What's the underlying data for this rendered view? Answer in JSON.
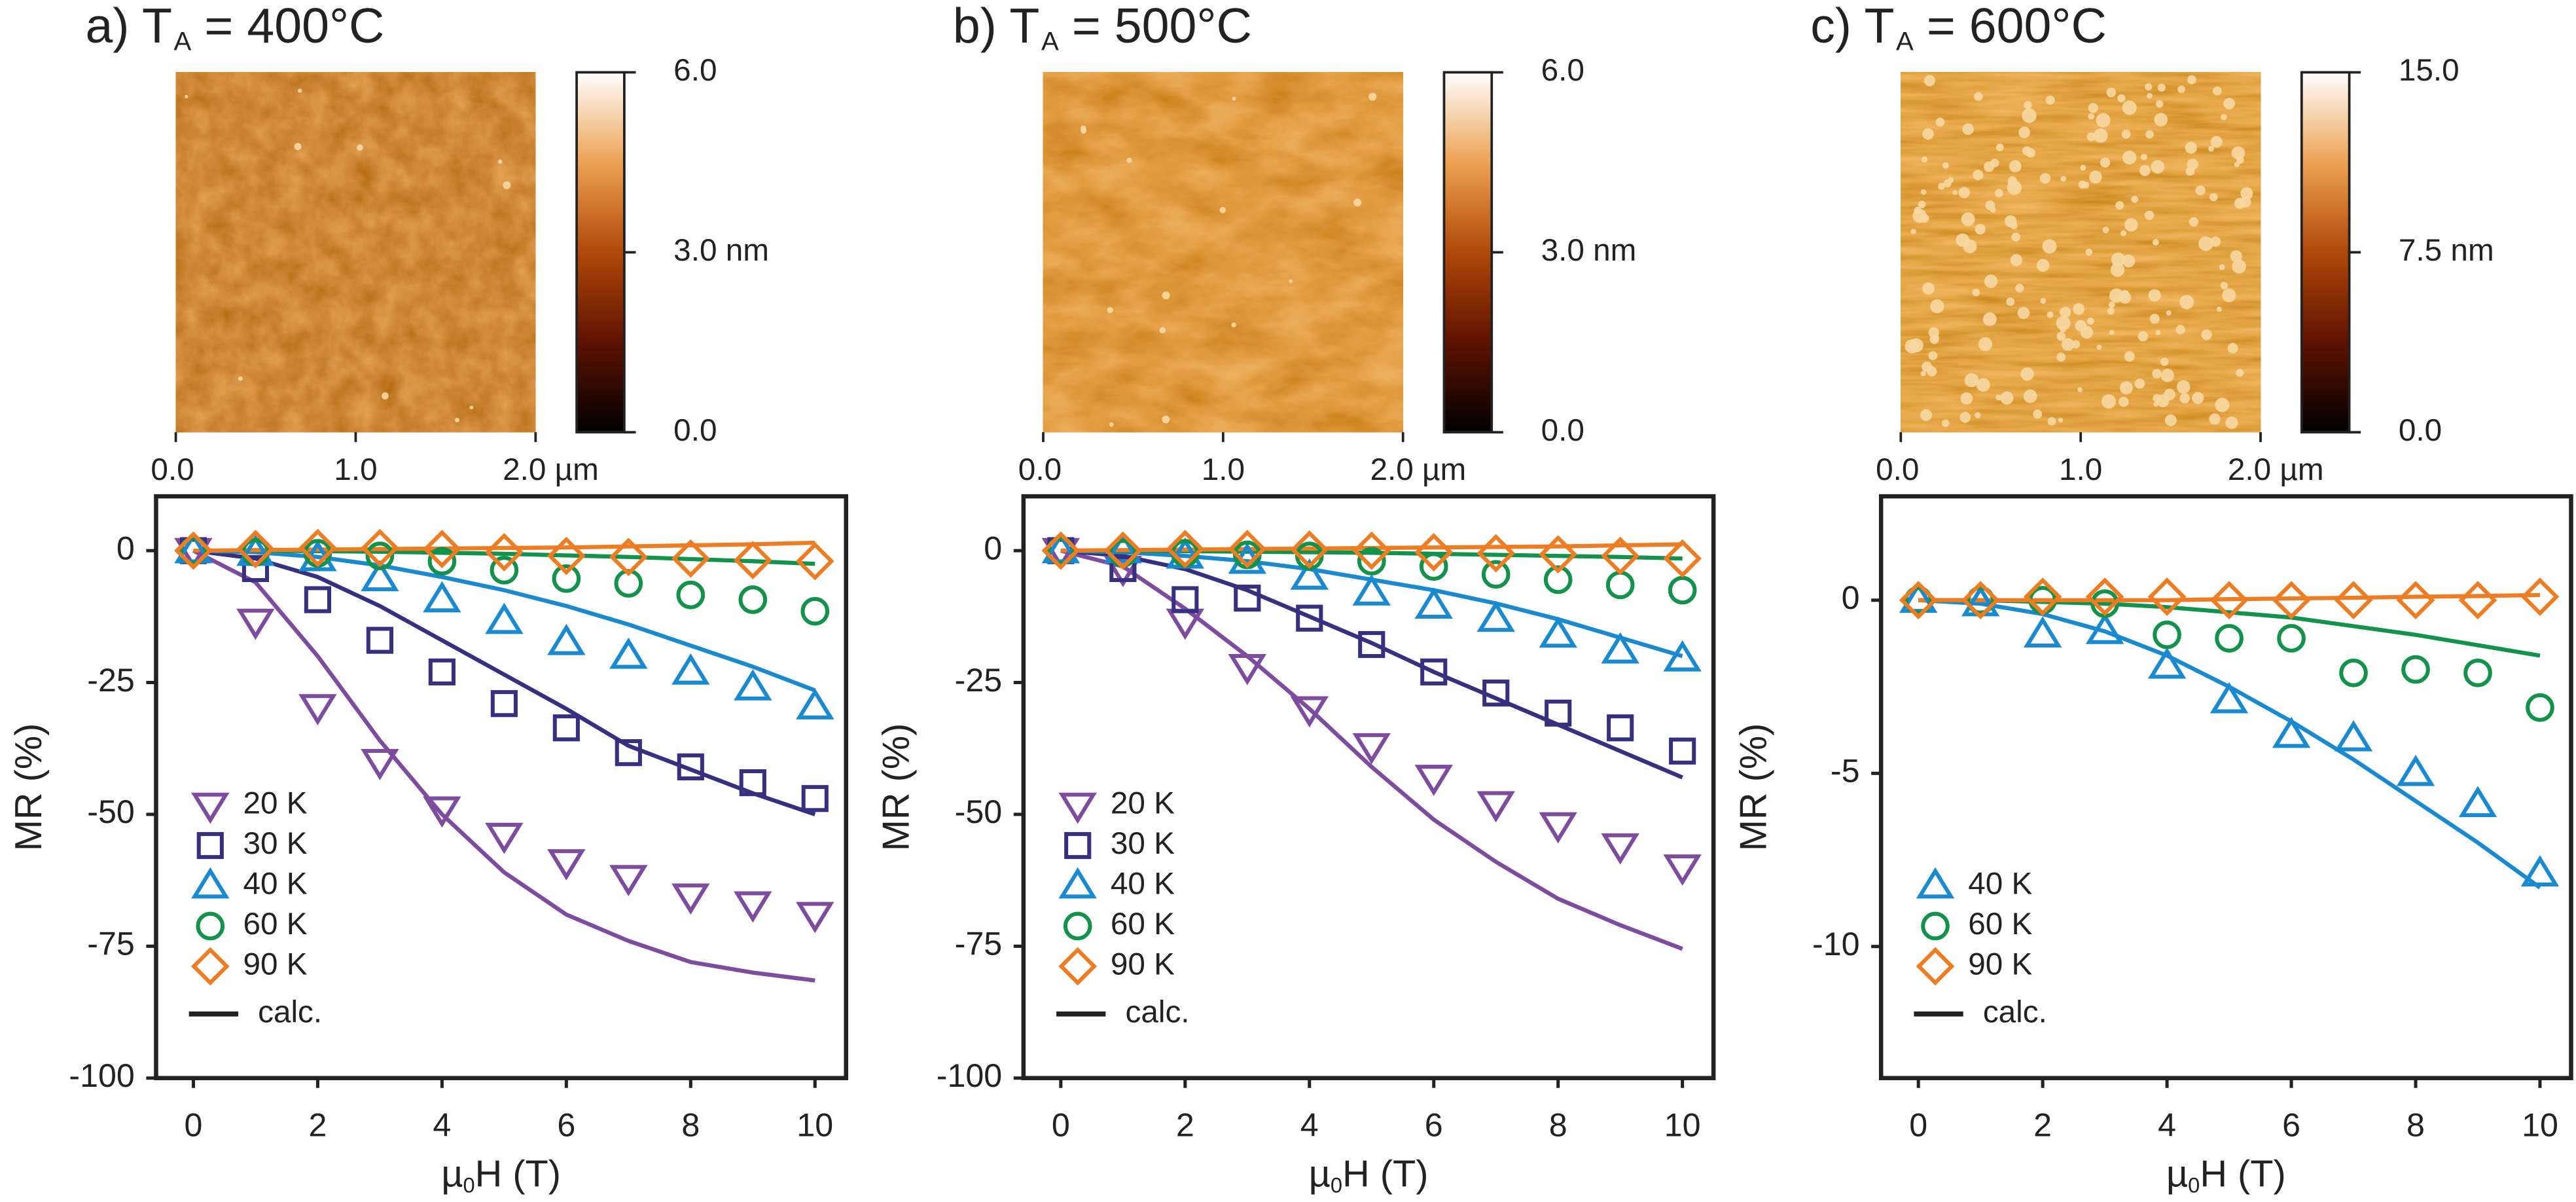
{
  "chart_data": [
    {
      "type": "scatter",
      "title": [
        "a) T",
        "A",
        "= 400°C"
      ],
      "image": {
        "xlim": [
          0,
          2
        ],
        "xticks": [
          {
            "value": 0,
            "label": "0.0"
          },
          {
            "value": 1,
            "label": "1.0"
          },
          {
            "value": 2,
            "label": "2.0 µm"
          }
        ],
        "colorbar_lim": [
          0,
          6
        ],
        "colorbar_ticks": [
          {
            "value": 0,
            "label": "0.0"
          },
          {
            "value": 3,
            "label": "3.0 nm"
          },
          {
            "value": 6,
            "label": "6.0"
          }
        ]
      },
      "xlabel": [
        "µ",
        "0",
        "H (T)"
      ],
      "ylabel": "MR (%)",
      "x": [
        0,
        1,
        2,
        3,
        4,
        5,
        6,
        7,
        8,
        9,
        10
      ],
      "xlim": [
        -0.6,
        10.5
      ],
      "xticks": [
        0,
        2,
        4,
        6,
        8,
        10
      ],
      "ylim": [
        -100,
        10.3
      ],
      "yticks": [
        -100,
        -75,
        -50,
        -25,
        0
      ],
      "legend": "lower left",
      "calc_name": "calc.",
      "calc_color": "#222222",
      "series": [
        {
          "name": "20 K",
          "color": "#7d4c9e",
          "marker": "triangle-down",
          "values": [
            0,
            -13.4,
            -29.6,
            -40,
            -49,
            -54,
            -59,
            -62,
            -65.5,
            -67,
            -69
          ],
          "calc": [
            0,
            -6,
            -20,
            -36,
            -50,
            -61,
            -69,
            -74,
            -78,
            -80,
            -81.5
          ]
        },
        {
          "name": "30 K",
          "color": "#35307f",
          "marker": "square",
          "values": [
            0,
            -3.4,
            -9.3,
            -17,
            -23,
            -29,
            -33.6,
            -38.3,
            -41,
            -44,
            -47
          ],
          "calc": [
            0,
            -1.5,
            -5,
            -10.5,
            -17,
            -23.5,
            -30,
            -37,
            -41.5,
            -46,
            -50
          ]
        },
        {
          "name": "40 K",
          "color": "#1a8ad0",
          "marker": "triangle-up",
          "values": [
            0,
            -0.5,
            -1.5,
            -5.3,
            -9.3,
            -13.4,
            -17.4,
            -20,
            -23,
            -26,
            -29.6
          ],
          "calc": [
            0,
            -0.3,
            -1.2,
            -2.8,
            -5,
            -7.5,
            -10.5,
            -14,
            -18,
            -22,
            -26.5
          ]
        },
        {
          "name": "60 K",
          "color": "#12924a",
          "marker": "circle",
          "values": [
            0,
            -0.3,
            -0.5,
            -1,
            -2,
            -3.7,
            -5.3,
            -6.2,
            -8.4,
            -9.3,
            -11.5
          ],
          "calc": [
            0,
            0,
            -0.1,
            -0.2,
            -0.4,
            -0.6,
            -0.9,
            -1.2,
            -1.6,
            -2,
            -2.5
          ]
        },
        {
          "name": "90 K",
          "color": "#ee7c22",
          "marker": "diamond",
          "values": [
            0,
            0.3,
            0.5,
            0.5,
            0.3,
            -0.3,
            -1,
            -1.2,
            -1.5,
            -1.8,
            -2
          ],
          "calc": [
            0,
            0.1,
            0.2,
            0.3,
            0.4,
            0.5,
            0.6,
            0.8,
            1,
            1.2,
            1.5
          ]
        }
      ]
    },
    {
      "type": "scatter",
      "title": [
        "b) T",
        "A",
        "= 500°C"
      ],
      "image": {
        "xlim": [
          0,
          2
        ],
        "xticks": [
          {
            "value": 0,
            "label": "0.0"
          },
          {
            "value": 1,
            "label": "1.0"
          },
          {
            "value": 2,
            "label": "2.0 µm"
          }
        ],
        "colorbar_lim": [
          0,
          6
        ],
        "colorbar_ticks": [
          {
            "value": 0,
            "label": "0.0"
          },
          {
            "value": 3,
            "label": "3.0 nm"
          },
          {
            "value": 6,
            "label": "6.0"
          }
        ]
      },
      "xlabel": [
        "µ",
        "0",
        "H (T)"
      ],
      "ylabel": "MR (%)",
      "x": [
        0,
        1,
        2,
        3,
        4,
        5,
        6,
        7,
        8,
        9,
        10
      ],
      "xlim": [
        -0.6,
        10.5
      ],
      "xticks": [
        0,
        2,
        4,
        6,
        8,
        10
      ],
      "ylim": [
        -100,
        10.3
      ],
      "yticks": [
        -100,
        -75,
        -50,
        -25,
        0
      ],
      "legend": "lower left",
      "calc_name": "calc.",
      "calc_color": "#222222",
      "series": [
        {
          "name": "20 K",
          "color": "#7d4c9e",
          "marker": "triangle-down",
          "values": [
            0,
            -3.4,
            -13.4,
            -22,
            -30,
            -37,
            -43,
            -48,
            -52,
            -56,
            -60
          ],
          "calc": [
            0,
            -3,
            -11,
            -20,
            -30,
            -41,
            -51,
            -59,
            -66,
            -71,
            -75.5
          ]
        },
        {
          "name": "30 K",
          "color": "#35307f",
          "marker": "square",
          "values": [
            0,
            -3.4,
            -9.3,
            -9,
            -12.8,
            -17.8,
            -23,
            -27,
            -30.8,
            -33.6,
            -38
          ],
          "calc": [
            0,
            -1,
            -3.5,
            -7.5,
            -12.5,
            -17.5,
            -23,
            -28,
            -33,
            -38,
            -43
          ]
        },
        {
          "name": "40 K",
          "color": "#1a8ad0",
          "marker": "triangle-up",
          "values": [
            0,
            0,
            -1,
            -2,
            -5,
            -8,
            -10.5,
            -13,
            -16,
            -19,
            -20.5
          ],
          "calc": [
            0,
            -0.3,
            -1,
            -2,
            -3.5,
            -5.5,
            -7.5,
            -10,
            -13,
            -16.5,
            -20
          ]
        },
        {
          "name": "60 K",
          "color": "#12924a",
          "marker": "circle",
          "values": [
            0,
            -0.5,
            -0.5,
            -0.8,
            -1,
            -2,
            -3,
            -4.5,
            -5.5,
            -6.5,
            -7.5
          ],
          "calc": [
            0,
            0,
            -0.1,
            -0.2,
            -0.3,
            -0.4,
            -0.6,
            -0.8,
            -1,
            -1.2,
            -1.5
          ]
        },
        {
          "name": "90 K",
          "color": "#ee7c22",
          "marker": "diamond",
          "values": [
            0,
            0,
            0.3,
            0.3,
            0.2,
            0,
            -0.3,
            -0.5,
            -0.7,
            -1,
            -1.5
          ],
          "calc": [
            0,
            0.1,
            0.2,
            0.3,
            0.4,
            0.5,
            0.6,
            0.7,
            0.8,
            1,
            1.2
          ]
        }
      ]
    },
    {
      "type": "scatter",
      "title": [
        "c) T",
        "A",
        "= 600°C"
      ],
      "image": {
        "xlim": [
          0,
          2
        ],
        "xticks": [
          {
            "value": 0,
            "label": "0.0"
          },
          {
            "value": 1,
            "label": "1.0"
          },
          {
            "value": 2,
            "label": "2.0 µm"
          }
        ],
        "colorbar_lim": [
          0,
          15
        ],
        "colorbar_ticks": [
          {
            "value": 0,
            "label": "0.0"
          },
          {
            "value": 7.5,
            "label": "7.5 nm"
          },
          {
            "value": 15,
            "label": "15.0"
          }
        ]
      },
      "xlabel": [
        "µ",
        "0",
        "H (T)"
      ],
      "ylabel": "MR (%)",
      "x": [
        0,
        1,
        2,
        3,
        4,
        5,
        6,
        7,
        8,
        9,
        10
      ],
      "xlim": [
        -0.6,
        10.5
      ],
      "xticks": [
        0,
        2,
        4,
        6,
        8,
        10
      ],
      "ylim": [
        -13.8,
        3
      ],
      "yticks": [
        -10,
        -5,
        0
      ],
      "legend": "lower left",
      "calc_name": "calc.",
      "calc_color": "#222222",
      "series": [
        {
          "name": "40 K",
          "color": "#1a8ad0",
          "marker": "triangle-up",
          "values": [
            0,
            -0.1,
            -1,
            -0.9,
            -1.9,
            -2.9,
            -3.9,
            -4,
            -5,
            -5.9,
            -7.9
          ],
          "calc": [
            0,
            -0.1,
            -0.4,
            -0.9,
            -1.6,
            -2.5,
            -3.5,
            -4.6,
            -5.8,
            -7,
            -8.3
          ]
        },
        {
          "name": "60 K",
          "color": "#12924a",
          "marker": "circle",
          "values": [
            0,
            0,
            0,
            -0.1,
            -1,
            -1.1,
            -1.1,
            -2.1,
            -2,
            -2.1,
            -3.1
          ],
          "calc": [
            0,
            0,
            -0.05,
            -0.1,
            -0.2,
            -0.35,
            -0.5,
            -0.75,
            -1,
            -1.3,
            -1.6
          ]
        },
        {
          "name": "90 K",
          "color": "#ee7c22",
          "marker": "diamond",
          "values": [
            0,
            0,
            0.1,
            0.1,
            0.1,
            0,
            0,
            0,
            0,
            0,
            0.1
          ],
          "calc": [
            0,
            0,
            0,
            0,
            0,
            0.03,
            0.05,
            0.07,
            0.1,
            0.12,
            0.15
          ]
        }
      ]
    }
  ]
}
